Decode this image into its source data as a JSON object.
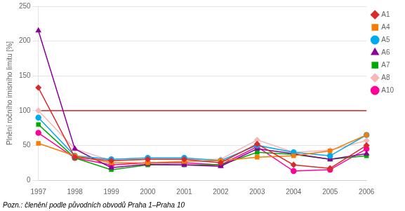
{
  "chart_data": {
    "type": "line",
    "categories": [
      "1997",
      "1998",
      "1999",
      "2000",
      "2001",
      "2002",
      "2003",
      "2004",
      "2005",
      "2006"
    ],
    "series": [
      {
        "name": "A1",
        "color": "#d92b2b",
        "marker": "diamond",
        "values": [
          133,
          33,
          28,
          30,
          30,
          25,
          52,
          22,
          17,
          50
        ]
      },
      {
        "name": "A4",
        "color": "#f97b00",
        "marker": "square",
        "values": [
          53,
          35,
          25,
          25,
          27,
          28,
          33,
          35,
          42,
          65
        ]
      },
      {
        "name": "A5",
        "color": "#00aaee",
        "marker": "circle",
        "values": [
          90,
          35,
          30,
          32,
          32,
          28,
          50,
          40,
          35,
          65
        ]
      },
      {
        "name": "A6",
        "color": "#8b0099",
        "marker": "triangle",
        "values": [
          215,
          45,
          18,
          23,
          22,
          20,
          45,
          38,
          30,
          38
        ]
      },
      {
        "name": "A7",
        "color": "#00aa00",
        "marker": "square",
        "values": [
          80,
          32,
          15,
          22,
          22,
          22,
          40,
          37,
          30,
          35
        ]
      },
      {
        "name": "A8",
        "color": "#f5b8b8",
        "marker": "diamond",
        "values": [
          100,
          45,
          28,
          30,
          30,
          30,
          58,
          40,
          43,
          57
        ]
      },
      {
        "name": "A10",
        "color": "#ff0099",
        "marker": "circle",
        "values": [
          68,
          32,
          22,
          25,
          25,
          22,
          48,
          13,
          15,
          45
        ]
      }
    ],
    "ylabel": "Plnění ročního imisního limitu [%]",
    "ylim": [
      0,
      250
    ],
    "yticks": [
      0,
      50,
      100,
      150,
      200,
      250
    ],
    "reference_line": {
      "value": 100,
      "color": "#cc0000"
    },
    "note": "Pozn.: členění podle původních obvodů Praha 1–Praha 10",
    "grid": "y",
    "legend": "upper right"
  }
}
